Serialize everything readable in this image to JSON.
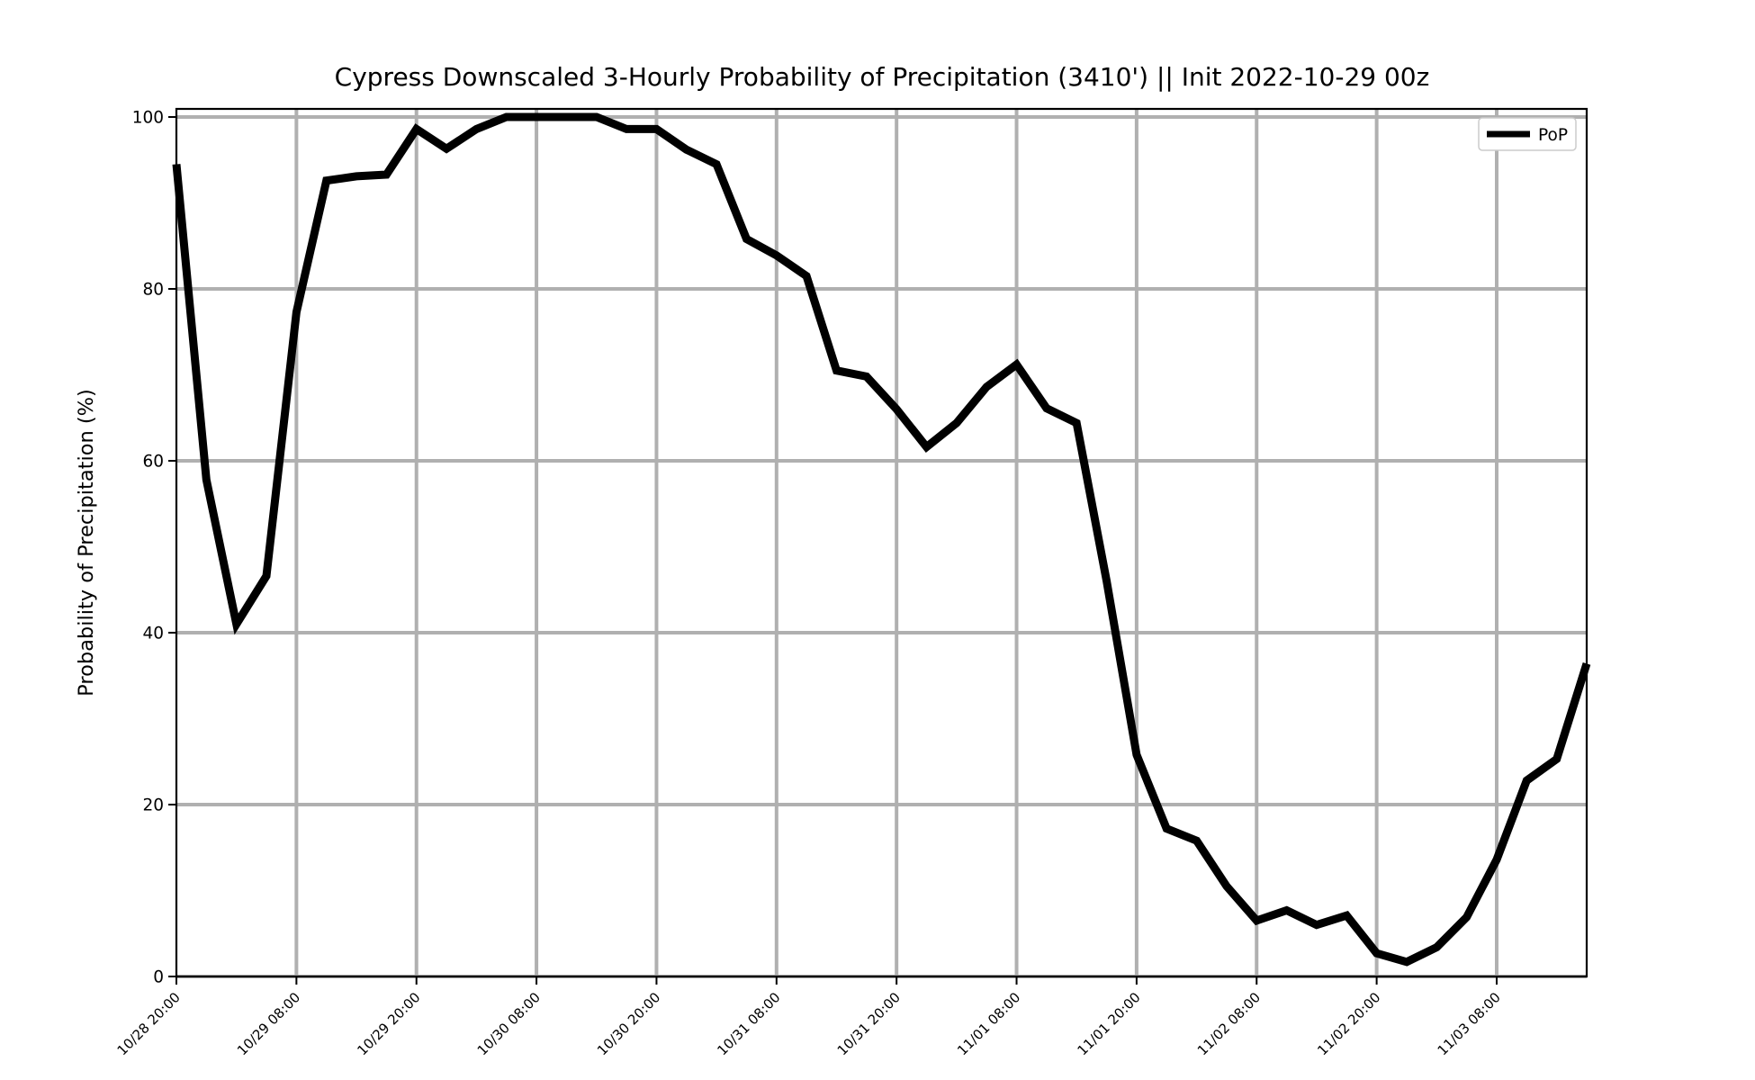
{
  "chart_data": {
    "type": "line",
    "title": "Cypress Downscaled 3-Hourly Probability of Precipitation (3410') || Init 2022-10-29 00z",
    "xlabel": "",
    "ylabel": "Probability of Precipitation (%)",
    "ylim": [
      0,
      100
    ],
    "yticks": [
      "0",
      "20",
      "40",
      "60",
      "80",
      "100"
    ],
    "x_start": "10/28 20:00",
    "x_step_hours": 3,
    "xticks": [
      "10/28 20:00",
      "10/29 08:00",
      "10/29 20:00",
      "10/30 08:00",
      "10/30 20:00",
      "10/31 08:00",
      "10/31 20:00",
      "11/01 08:00",
      "11/01 20:00",
      "11/02 08:00",
      "11/02 20:00",
      "11/03 08:00"
    ],
    "grid": true,
    "legend_position": "top-right",
    "series": [
      {
        "name": "PoP",
        "color": "#000000",
        "values": [
          94.5,
          57.8,
          41.0,
          46.6,
          77.3,
          92.6,
          93.1,
          93.3,
          98.6,
          96.3,
          98.6,
          100,
          100,
          100,
          100,
          98.6,
          98.6,
          96.2,
          94.5,
          85.8,
          83.9,
          81.5,
          70.5,
          69.8,
          66.0,
          61.6,
          64.4,
          68.6,
          71.2,
          66.1,
          64.4,
          46.0,
          25.8,
          17.2,
          15.8,
          10.5,
          6.5,
          7.7,
          6.0,
          7.1,
          2.7,
          1.7,
          3.4,
          6.9,
          13.6,
          22.8,
          25.3,
          36.4
        ]
      }
    ]
  }
}
